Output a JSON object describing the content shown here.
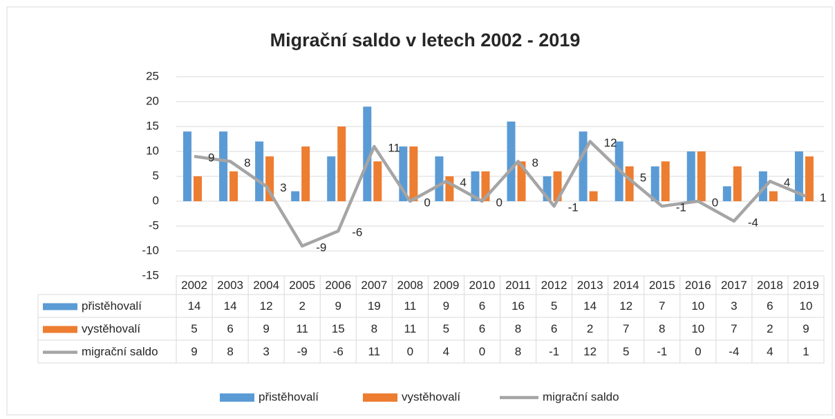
{
  "chart_data": {
    "type": "bar-line",
    "title": "Migrační saldo v letech 2002 - 2019",
    "categories": [
      "2002",
      "2003",
      "2004",
      "2005",
      "2006",
      "2007",
      "2008",
      "2009",
      "2010",
      "2011",
      "2012",
      "2013",
      "2014",
      "2015",
      "2016",
      "2017",
      "2018",
      "2019"
    ],
    "series": [
      {
        "name": "přistěhovalí",
        "type": "bar",
        "color": "#5b9bd5",
        "values": [
          14,
          14,
          12,
          2,
          9,
          19,
          11,
          9,
          6,
          16,
          5,
          14,
          12,
          7,
          10,
          3,
          6,
          10
        ]
      },
      {
        "name": "vystěhovalí",
        "type": "bar",
        "color": "#ed7d31",
        "values": [
          5,
          6,
          9,
          11,
          15,
          8,
          11,
          5,
          6,
          8,
          6,
          2,
          7,
          8,
          10,
          7,
          2,
          9
        ]
      },
      {
        "name": "migrační saldo",
        "type": "line",
        "color": "#a5a5a5",
        "values": [
          9,
          8,
          3,
          -9,
          -6,
          11,
          0,
          4,
          0,
          8,
          -1,
          12,
          5,
          -1,
          0,
          -4,
          4,
          1
        ]
      }
    ],
    "ylim": [
      -15,
      25
    ],
    "yticks": [
      -15,
      -10,
      -5,
      0,
      5,
      10,
      15,
      20,
      25
    ],
    "grid": true,
    "legend": "bottom",
    "data_table": true
  }
}
